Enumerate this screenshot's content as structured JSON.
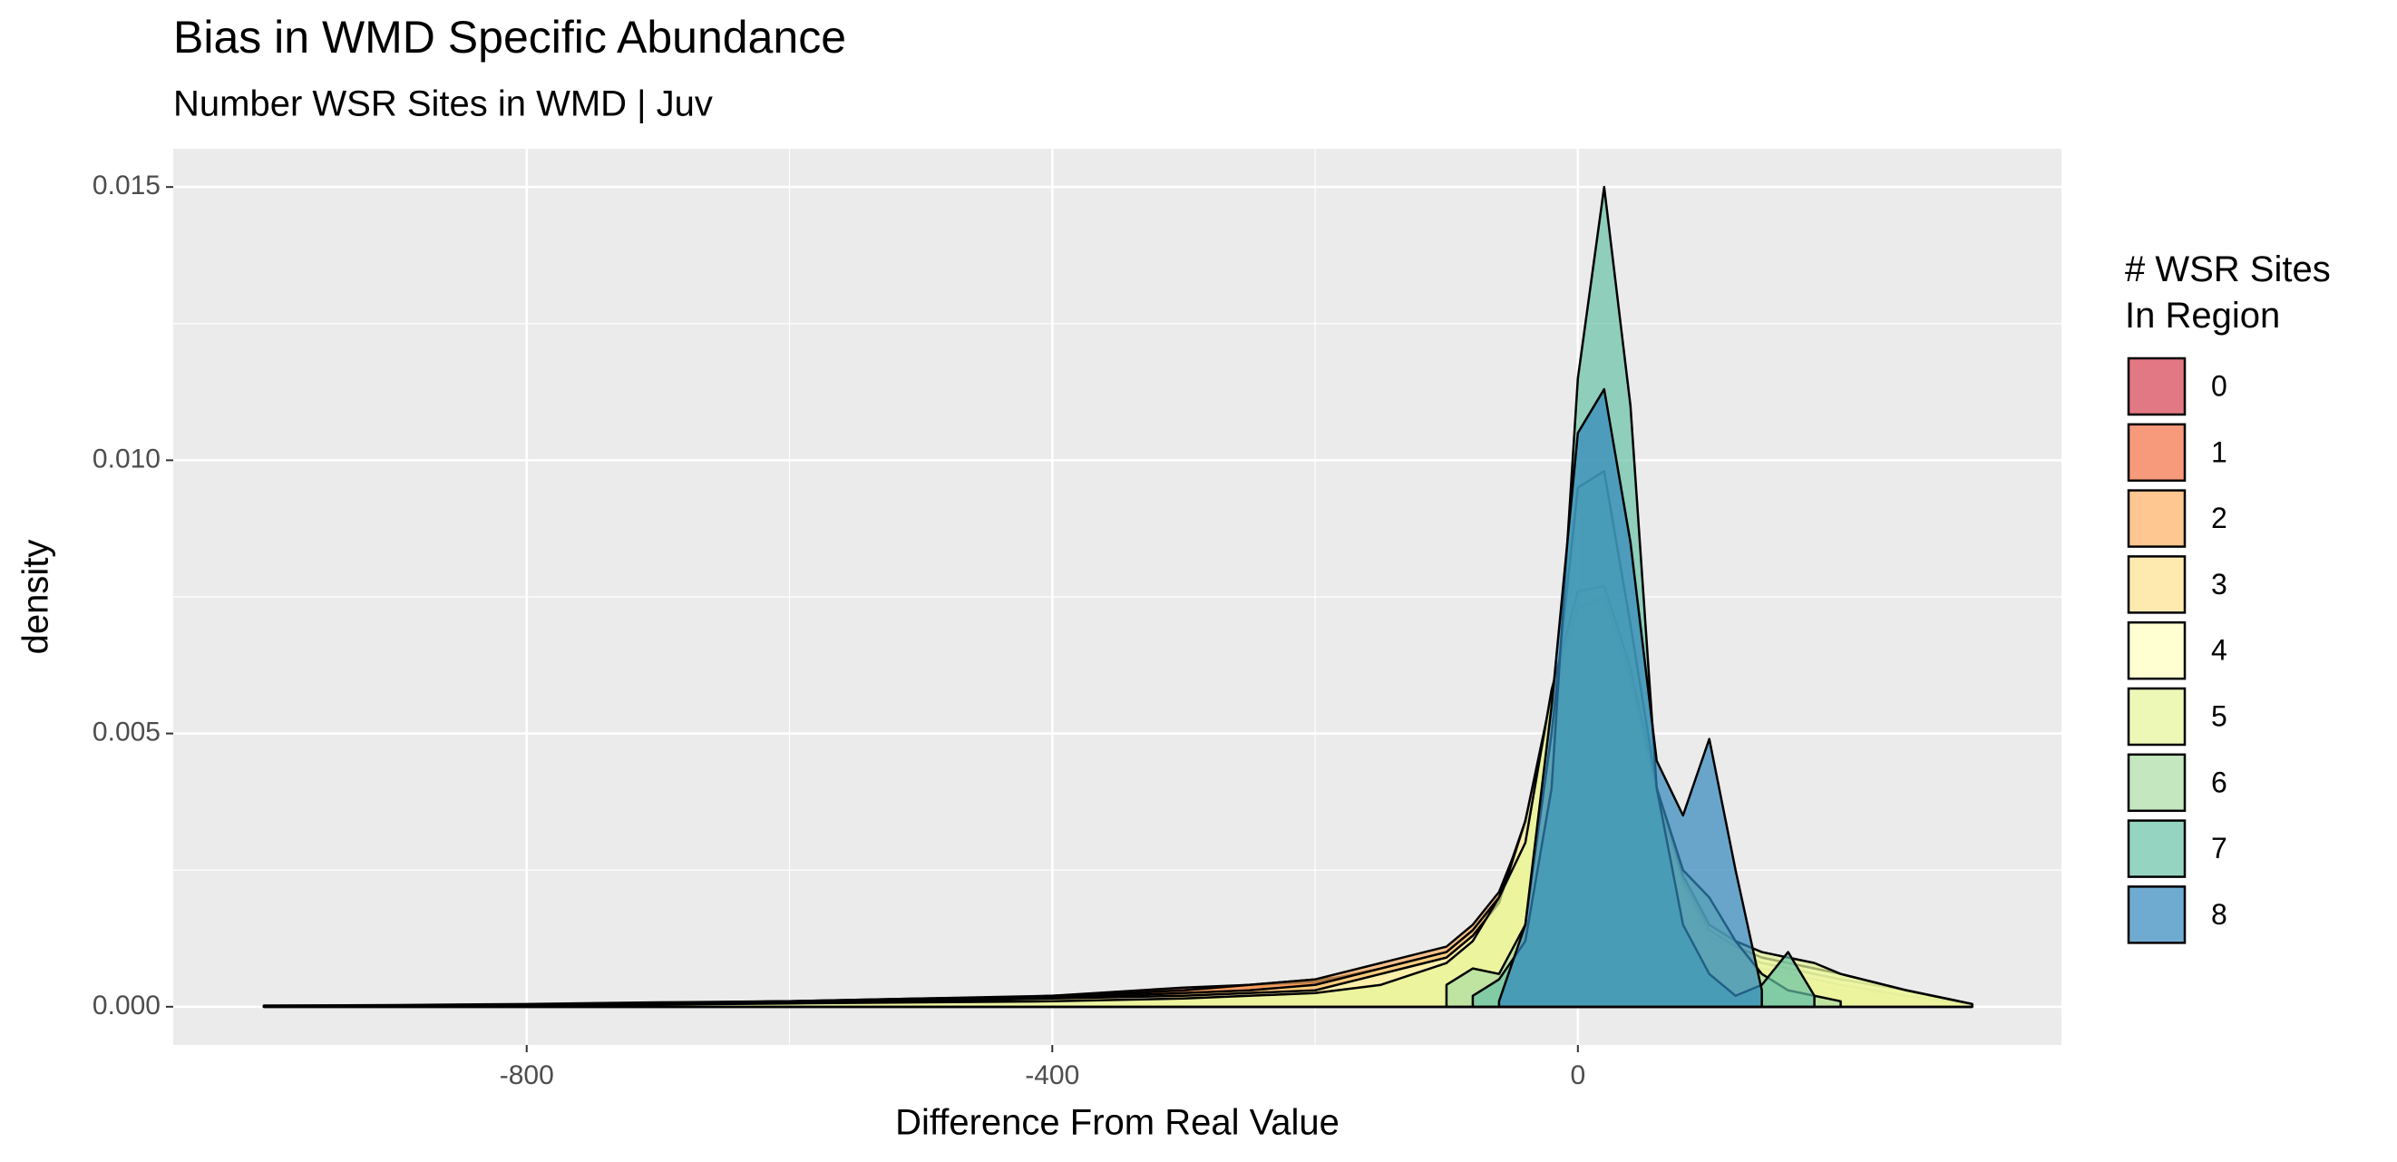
{
  "chart_data": {
    "type": "density",
    "title": "Bias in WMD Specific Abundance",
    "subtitle": "Number WSR Sites in WMD | Juv",
    "x_label": "Difference From Real Value",
    "y_label": "density",
    "legend_title": "# WSR Sites\nIn Region",
    "xlim": [
      -1069,
      368
    ],
    "ylim": [
      -0.0007,
      0.0157
    ],
    "xticks": [
      -800,
      -400,
      0
    ],
    "yticks": [
      {
        "value": 0,
        "label": "0.000"
      },
      {
        "value": 0.005,
        "label": "0.005"
      },
      {
        "value": 0.01,
        "label": "0.010"
      },
      {
        "value": 0.015,
        "label": "0.015"
      }
    ],
    "grid": true,
    "x": [
      -1000,
      -900,
      -800,
      -700,
      -600,
      -500,
      -400,
      -300,
      -250,
      -200,
      -150,
      -100,
      -80,
      -60,
      -40,
      -20,
      0,
      20,
      40,
      60,
      80,
      100,
      120,
      140,
      160,
      180,
      200,
      250,
      300
    ],
    "series": [
      {
        "name": "0",
        "color": "#d53e4f",
        "values": [
          2e-05,
          3e-05,
          5e-05,
          8e-05,
          0.0001,
          0.00015,
          0.0002,
          0.0003,
          0.0004,
          0.0005,
          0.0006,
          0.0009,
          0.0012,
          0.0018,
          0.003,
          0.0048,
          0.0062,
          0.0065,
          0.0055,
          0.0038,
          0.0022,
          0.0012,
          0.0008,
          0.0006,
          0.0005,
          0.0004,
          0.0003,
          0.0002,
          5e-05
        ]
      },
      {
        "name": "1",
        "color": "#f46d43",
        "values": [
          2e-05,
          2e-05,
          4e-05,
          6e-05,
          0.0001,
          0.00012,
          0.0002,
          0.00035,
          0.0004,
          0.00045,
          0.0007,
          0.001,
          0.0014,
          0.002,
          0.0032,
          0.005,
          0.0064,
          0.0066,
          0.0054,
          0.0036,
          0.002,
          0.0011,
          0.0008,
          0.0006,
          0.0005,
          0.0004,
          0.0003,
          0.0002,
          4e-05
        ]
      },
      {
        "name": "2",
        "color": "#fdae61",
        "values": [
          1e-05,
          2e-05,
          4e-05,
          7e-05,
          0.0001,
          0.00015,
          0.00018,
          0.0003,
          0.0004,
          0.0005,
          0.0008,
          0.0011,
          0.0015,
          0.0021,
          0.0033,
          0.0052,
          0.0066,
          0.0068,
          0.0056,
          0.0037,
          0.0021,
          0.0012,
          0.0009,
          0.0007,
          0.0006,
          0.0005,
          0.0004,
          0.0002,
          4e-05
        ]
      },
      {
        "name": "3",
        "color": "#fee08b",
        "values": [
          1e-05,
          2e-05,
          3e-05,
          6e-05,
          0.0001,
          0.00012,
          0.00016,
          0.00025,
          0.0003,
          0.0004,
          0.0007,
          0.001,
          0.0014,
          0.002,
          0.0034,
          0.0055,
          0.007,
          0.0072,
          0.0058,
          0.0038,
          0.0022,
          0.0013,
          0.001,
          0.0008,
          0.0007,
          0.0006,
          0.0005,
          0.0003,
          5e-05
        ]
      },
      {
        "name": "4",
        "color": "#ffffbf",
        "values": [
          1e-05,
          2e-05,
          3e-05,
          5e-05,
          8e-05,
          0.0001,
          0.00015,
          0.0002,
          0.00025,
          0.0003,
          0.0006,
          0.0009,
          0.0013,
          0.0019,
          0.0034,
          0.0057,
          0.0073,
          0.0075,
          0.006,
          0.0039,
          0.0023,
          0.0014,
          0.0011,
          0.0009,
          0.0008,
          0.0007,
          0.0006,
          0.0003,
          5e-05
        ]
      },
      {
        "name": "5",
        "color": "#e6f598",
        "values": [
          1e-05,
          1e-05,
          2e-05,
          4e-05,
          6e-05,
          8e-05,
          0.0001,
          0.00015,
          0.0002,
          0.00025,
          0.0004,
          0.0008,
          0.0012,
          0.002,
          0.003,
          0.0058,
          0.0076,
          0.0077,
          0.0062,
          0.004,
          0.0024,
          0.0015,
          0.0012,
          0.001,
          0.0009,
          0.0008,
          0.0006,
          0.0003,
          5e-05
        ]
      },
      {
        "name": "6",
        "color": "#abdda4",
        "values": [
          null,
          null,
          null,
          null,
          null,
          null,
          null,
          null,
          null,
          null,
          null,
          0.0004,
          0.0007,
          0.0006,
          0.0015,
          0.005,
          0.0095,
          0.0098,
          0.007,
          0.004,
          0.0025,
          0.002,
          0.0012,
          0.0006,
          0.0003,
          0.0002,
          0.0001,
          null,
          null
        ]
      },
      {
        "name": "7",
        "color": "#66c2a5",
        "values": [
          null,
          null,
          null,
          null,
          null,
          null,
          null,
          null,
          null,
          null,
          null,
          null,
          0.0002,
          0.0005,
          0.0012,
          0.004,
          0.0115,
          0.015,
          0.011,
          0.004,
          0.0015,
          0.0006,
          0.0002,
          0.0004,
          0.001,
          0.0002,
          null,
          null,
          null
        ]
      },
      {
        "name": "8",
        "color": "#3288bd",
        "values": [
          null,
          null,
          null,
          null,
          null,
          null,
          null,
          null,
          null,
          null,
          null,
          null,
          null,
          0.0001,
          0.0015,
          0.0055,
          0.0105,
          0.0113,
          0.0085,
          0.0045,
          0.0035,
          0.0049,
          0.0025,
          0.0003,
          null,
          null,
          null,
          null,
          null
        ]
      }
    ]
  }
}
